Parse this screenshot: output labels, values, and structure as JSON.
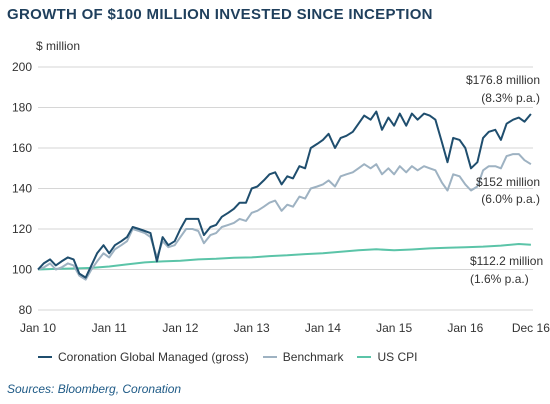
{
  "chart_data": {
    "type": "line",
    "title": "GROWTH OF $100 MILLION INVESTED SINCE INCEPTION",
    "ylabel": "$ million",
    "xlabel": "",
    "ylim": [
      80,
      200
    ],
    "yticks": [
      "80",
      "100",
      "120",
      "140",
      "160",
      "180",
      "200"
    ],
    "xlim": [
      2010.0,
      2016.95
    ],
    "xticks": [
      {
        "label": "Jan 10",
        "x": 2010.0
      },
      {
        "label": "Jan 11",
        "x": 2011.0
      },
      {
        "label": "Jan 12",
        "x": 2012.0
      },
      {
        "label": "Jan 13",
        "x": 2013.0
      },
      {
        "label": "Jan 14",
        "x": 2014.0
      },
      {
        "label": "Jan 15",
        "x": 2015.0
      },
      {
        "label": "Jan 16",
        "x": 2016.0
      },
      {
        "label": "Dec 16",
        "x": 2016.92
      }
    ],
    "grid": "horizontal",
    "legend_position": "bottom",
    "series": [
      {
        "name": "Coronation Global Managed (gross)",
        "color": "#1f4e6e",
        "points": [
          [
            2010.0,
            100
          ],
          [
            2010.08,
            103
          ],
          [
            2010.17,
            105
          ],
          [
            2010.25,
            102
          ],
          [
            2010.33,
            104
          ],
          [
            2010.42,
            106
          ],
          [
            2010.5,
            105
          ],
          [
            2010.58,
            98
          ],
          [
            2010.67,
            96
          ],
          [
            2010.75,
            102
          ],
          [
            2010.83,
            108
          ],
          [
            2010.92,
            112
          ],
          [
            2011.0,
            108
          ],
          [
            2011.08,
            112
          ],
          [
            2011.17,
            114
          ],
          [
            2011.25,
            116
          ],
          [
            2011.33,
            121
          ],
          [
            2011.42,
            120
          ],
          [
            2011.5,
            119
          ],
          [
            2011.58,
            118
          ],
          [
            2011.67,
            104
          ],
          [
            2011.75,
            116
          ],
          [
            2011.83,
            112
          ],
          [
            2011.92,
            114
          ],
          [
            2012.0,
            120
          ],
          [
            2012.08,
            125
          ],
          [
            2012.17,
            125
          ],
          [
            2012.25,
            125
          ],
          [
            2012.33,
            117
          ],
          [
            2012.42,
            121
          ],
          [
            2012.5,
            122
          ],
          [
            2012.58,
            126
          ],
          [
            2012.67,
            128
          ],
          [
            2012.75,
            130
          ],
          [
            2012.83,
            133
          ],
          [
            2012.92,
            133
          ],
          [
            2013.0,
            140
          ],
          [
            2013.08,
            141
          ],
          [
            2013.17,
            144
          ],
          [
            2013.25,
            147
          ],
          [
            2013.33,
            148
          ],
          [
            2013.42,
            142
          ],
          [
            2013.5,
            146
          ],
          [
            2013.58,
            145
          ],
          [
            2013.67,
            151
          ],
          [
            2013.75,
            150
          ],
          [
            2013.83,
            160
          ],
          [
            2013.92,
            162
          ],
          [
            2014.0,
            164
          ],
          [
            2014.08,
            167
          ],
          [
            2014.17,
            160
          ],
          [
            2014.25,
            165
          ],
          [
            2014.33,
            166
          ],
          [
            2014.42,
            168
          ],
          [
            2014.5,
            172
          ],
          [
            2014.58,
            176
          ],
          [
            2014.67,
            174
          ],
          [
            2014.75,
            178
          ],
          [
            2014.83,
            169
          ],
          [
            2014.92,
            175
          ],
          [
            2015.0,
            171
          ],
          [
            2015.08,
            177
          ],
          [
            2015.17,
            171
          ],
          [
            2015.25,
            177
          ],
          [
            2015.33,
            174
          ],
          [
            2015.42,
            177
          ],
          [
            2015.5,
            176
          ],
          [
            2015.58,
            174
          ],
          [
            2015.67,
            163
          ],
          [
            2015.75,
            153
          ],
          [
            2015.83,
            165
          ],
          [
            2015.92,
            164
          ],
          [
            2016.0,
            160
          ],
          [
            2016.08,
            150
          ],
          [
            2016.17,
            153
          ],
          [
            2016.25,
            165
          ],
          [
            2016.33,
            168
          ],
          [
            2016.42,
            169
          ],
          [
            2016.5,
            164
          ],
          [
            2016.58,
            172
          ],
          [
            2016.67,
            174
          ],
          [
            2016.75,
            175
          ],
          [
            2016.83,
            173
          ],
          [
            2016.92,
            176.8
          ]
        ]
      },
      {
        "name": "Benchmark",
        "color": "#9eb2c2",
        "points": [
          [
            2010.0,
            100
          ],
          [
            2010.08,
            101
          ],
          [
            2010.17,
            103
          ],
          [
            2010.25,
            100
          ],
          [
            2010.33,
            101
          ],
          [
            2010.42,
            103
          ],
          [
            2010.5,
            102
          ],
          [
            2010.58,
            97
          ],
          [
            2010.67,
            95
          ],
          [
            2010.75,
            100
          ],
          [
            2010.83,
            104
          ],
          [
            2010.92,
            108
          ],
          [
            2011.0,
            106
          ],
          [
            2011.08,
            110
          ],
          [
            2011.17,
            112
          ],
          [
            2011.25,
            114
          ],
          [
            2011.33,
            120
          ],
          [
            2011.42,
            119
          ],
          [
            2011.5,
            118
          ],
          [
            2011.58,
            116
          ],
          [
            2011.67,
            106
          ],
          [
            2011.75,
            114
          ],
          [
            2011.83,
            111
          ],
          [
            2011.92,
            112
          ],
          [
            2012.0,
            116
          ],
          [
            2012.08,
            120
          ],
          [
            2012.17,
            120
          ],
          [
            2012.25,
            119
          ],
          [
            2012.33,
            113
          ],
          [
            2012.42,
            117
          ],
          [
            2012.5,
            118
          ],
          [
            2012.58,
            121
          ],
          [
            2012.67,
            122
          ],
          [
            2012.75,
            123
          ],
          [
            2012.83,
            125
          ],
          [
            2012.92,
            124
          ],
          [
            2013.0,
            128
          ],
          [
            2013.08,
            129
          ],
          [
            2013.17,
            131
          ],
          [
            2013.25,
            133
          ],
          [
            2013.33,
            134
          ],
          [
            2013.42,
            129
          ],
          [
            2013.5,
            132
          ],
          [
            2013.58,
            131
          ],
          [
            2013.67,
            136
          ],
          [
            2013.75,
            135
          ],
          [
            2013.83,
            140
          ],
          [
            2013.92,
            141
          ],
          [
            2014.0,
            142
          ],
          [
            2014.08,
            144
          ],
          [
            2014.17,
            141
          ],
          [
            2014.25,
            146
          ],
          [
            2014.33,
            147
          ],
          [
            2014.42,
            148
          ],
          [
            2014.5,
            150
          ],
          [
            2014.58,
            152
          ],
          [
            2014.67,
            150
          ],
          [
            2014.75,
            152
          ],
          [
            2014.83,
            147
          ],
          [
            2014.92,
            150
          ],
          [
            2015.0,
            147
          ],
          [
            2015.08,
            151
          ],
          [
            2015.17,
            148
          ],
          [
            2015.25,
            151
          ],
          [
            2015.33,
            149
          ],
          [
            2015.42,
            151
          ],
          [
            2015.5,
            150
          ],
          [
            2015.58,
            149
          ],
          [
            2015.67,
            143
          ],
          [
            2015.75,
            139
          ],
          [
            2015.83,
            147
          ],
          [
            2015.92,
            146
          ],
          [
            2016.0,
            142
          ],
          [
            2016.08,
            139
          ],
          [
            2016.17,
            141
          ],
          [
            2016.25,
            149
          ],
          [
            2016.33,
            151
          ],
          [
            2016.42,
            151
          ],
          [
            2016.5,
            150
          ],
          [
            2016.58,
            156
          ],
          [
            2016.67,
            157
          ],
          [
            2016.75,
            157
          ],
          [
            2016.83,
            154
          ],
          [
            2016.92,
            152
          ]
        ]
      },
      {
        "name": "US CPI",
        "color": "#5bc4a8",
        "points": [
          [
            2010.0,
            100
          ],
          [
            2010.25,
            100.3
          ],
          [
            2010.5,
            100.5
          ],
          [
            2010.75,
            100.8
          ],
          [
            2011.0,
            101.5
          ],
          [
            2011.25,
            102.5
          ],
          [
            2011.5,
            103.5
          ],
          [
            2011.75,
            104
          ],
          [
            2012.0,
            104.3
          ],
          [
            2012.25,
            105
          ],
          [
            2012.5,
            105.3
          ],
          [
            2012.75,
            105.8
          ],
          [
            2013.0,
            106
          ],
          [
            2013.25,
            106.6
          ],
          [
            2013.5,
            107
          ],
          [
            2013.75,
            107.6
          ],
          [
            2014.0,
            108
          ],
          [
            2014.25,
            108.8
          ],
          [
            2014.5,
            109.5
          ],
          [
            2014.75,
            110
          ],
          [
            2015.0,
            109.5
          ],
          [
            2015.25,
            109.9
          ],
          [
            2015.5,
            110.4
          ],
          [
            2015.75,
            110.7
          ],
          [
            2016.0,
            111
          ],
          [
            2016.25,
            111.3
          ],
          [
            2016.5,
            111.8
          ],
          [
            2016.75,
            112.6
          ],
          [
            2016.92,
            112.2
          ]
        ]
      }
    ],
    "annotations": [
      {
        "text": "$176.8 million",
        "series": 0
      },
      {
        "text": "(8.3% p.a.)",
        "series": 0
      },
      {
        "text": "$152 million",
        "series": 1
      },
      {
        "text": "(6.0% p.a.)",
        "series": 1
      },
      {
        "text": "$112.2 million",
        "series": 2
      },
      {
        "text": "(1.6% p.a.)",
        "series": 2
      }
    ]
  },
  "source": "Sources: Bloomberg, Coronation"
}
